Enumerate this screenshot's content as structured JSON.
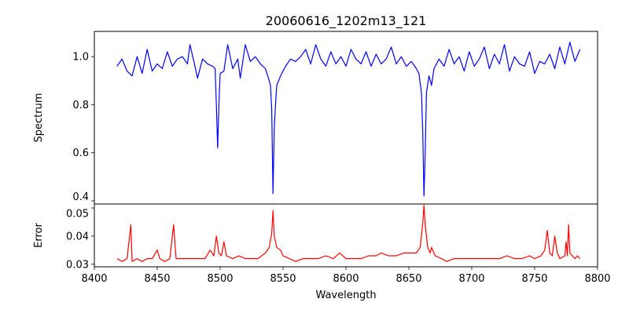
{
  "chart_data": {
    "type": "line",
    "title": "20060616_1202m13_121",
    "xlabel": "Wavelength",
    "xlim": [
      8400,
      8800
    ],
    "xticks": [
      "8400",
      "8450",
      "8500",
      "8550",
      "8600",
      "8650",
      "8700",
      "8750",
      "8800"
    ],
    "grid": false,
    "panels": [
      {
        "name": "spectrum",
        "ylabel": "Spectrum",
        "ylim": [
          0.387,
          1.105
        ],
        "yticks": [
          "0.4",
          "0.6",
          "0.8",
          "1.0"
        ],
        "color": "#0000ff",
        "points": [
          [
            8418,
            0.96
          ],
          [
            8422,
            0.99
          ],
          [
            8426,
            0.94
          ],
          [
            8430,
            0.92
          ],
          [
            8434,
            1.0
          ],
          [
            8438,
            0.93
          ],
          [
            8442,
            1.03
          ],
          [
            8446,
            0.94
          ],
          [
            8450,
            0.97
          ],
          [
            8454,
            0.95
          ],
          [
            8458,
            1.02
          ],
          [
            8462,
            0.96
          ],
          [
            8466,
            0.99
          ],
          [
            8470,
            1.0
          ],
          [
            8474,
            0.97
          ],
          [
            8476,
            1.05
          ],
          [
            8480,
            0.96
          ],
          [
            8482,
            0.91
          ],
          [
            8486,
            0.99
          ],
          [
            8490,
            0.97
          ],
          [
            8494,
            0.96
          ],
          [
            8496,
            0.95
          ],
          [
            8497,
            0.8
          ],
          [
            8498,
            0.62
          ],
          [
            8499,
            0.8
          ],
          [
            8500,
            0.93
          ],
          [
            8503,
            0.94
          ],
          [
            8506,
            1.05
          ],
          [
            8510,
            0.95
          ],
          [
            8514,
            0.99
          ],
          [
            8516,
            0.91
          ],
          [
            8520,
            1.05
          ],
          [
            8524,
            0.98
          ],
          [
            8528,
            1.0
          ],
          [
            8532,
            0.97
          ],
          [
            8536,
            0.95
          ],
          [
            8539,
            0.9
          ],
          [
            8540,
            0.88
          ],
          [
            8541,
            0.78
          ],
          [
            8542,
            0.43
          ],
          [
            8543,
            0.7
          ],
          [
            8544,
            0.8
          ],
          [
            8545,
            0.88
          ],
          [
            8548,
            0.92
          ],
          [
            8552,
            0.96
          ],
          [
            8556,
            0.99
          ],
          [
            8560,
            0.98
          ],
          [
            8564,
            1.0
          ],
          [
            8568,
            1.03
          ],
          [
            8572,
            0.97
          ],
          [
            8576,
            1.05
          ],
          [
            8580,
            0.99
          ],
          [
            8584,
            0.96
          ],
          [
            8588,
            1.02
          ],
          [
            8592,
            0.97
          ],
          [
            8596,
            1.0
          ],
          [
            8600,
            0.96
          ],
          [
            8604,
            1.03
          ],
          [
            8608,
            0.99
          ],
          [
            8612,
            0.97
          ],
          [
            8616,
            1.02
          ],
          [
            8620,
            0.96
          ],
          [
            8624,
            1.01
          ],
          [
            8628,
            0.97
          ],
          [
            8632,
            0.99
          ],
          [
            8636,
            1.04
          ],
          [
            8640,
            0.97
          ],
          [
            8644,
            1.0
          ],
          [
            8648,
            0.96
          ],
          [
            8652,
            0.98
          ],
          [
            8656,
            0.95
          ],
          [
            8658,
            0.93
          ],
          [
            8660,
            0.85
          ],
          [
            8661,
            0.7
          ],
          [
            8662,
            0.42
          ],
          [
            8663,
            0.6
          ],
          [
            8664,
            0.85
          ],
          [
            8666,
            0.92
          ],
          [
            8668,
            0.88
          ],
          [
            8670,
            0.95
          ],
          [
            8674,
            0.99
          ],
          [
            8678,
            0.96
          ],
          [
            8682,
            1.03
          ],
          [
            8686,
            0.97
          ],
          [
            8690,
            1.0
          ],
          [
            8694,
            0.94
          ],
          [
            8698,
            1.02
          ],
          [
            8702,
            0.96
          ],
          [
            8706,
            0.99
          ],
          [
            8710,
            1.04
          ],
          [
            8714,
            0.95
          ],
          [
            8718,
            1.01
          ],
          [
            8722,
            0.97
          ],
          [
            8726,
            1.05
          ],
          [
            8730,
            0.94
          ],
          [
            8734,
            1.0
          ],
          [
            8738,
            0.97
          ],
          [
            8742,
            0.96
          ],
          [
            8746,
            1.02
          ],
          [
            8750,
            0.93
          ],
          [
            8754,
            0.98
          ],
          [
            8758,
            0.97
          ],
          [
            8762,
            1.01
          ],
          [
            8766,
            0.95
          ],
          [
            8770,
            1.04
          ],
          [
            8774,
            0.97
          ],
          [
            8778,
            1.06
          ],
          [
            8782,
            0.98
          ],
          [
            8786,
            1.03
          ]
        ]
      },
      {
        "name": "error",
        "ylabel": "Error",
        "ylim": [
          0.0291,
          0.0514
        ],
        "yticks": [
          "0.03",
          "0.04",
          "0.05"
        ],
        "color": "#ff0000",
        "points": [
          [
            8418,
            0.032
          ],
          [
            8422,
            0.031
          ],
          [
            8426,
            0.032
          ],
          [
            8428,
            0.04
          ],
          [
            8429,
            0.044
          ],
          [
            8430,
            0.031
          ],
          [
            8434,
            0.032
          ],
          [
            8438,
            0.031
          ],
          [
            8442,
            0.032
          ],
          [
            8446,
            0.032
          ],
          [
            8450,
            0.035
          ],
          [
            8452,
            0.032
          ],
          [
            8456,
            0.031
          ],
          [
            8460,
            0.032
          ],
          [
            8463,
            0.044
          ],
          [
            8465,
            0.032
          ],
          [
            8470,
            0.032
          ],
          [
            8476,
            0.032
          ],
          [
            8482,
            0.032
          ],
          [
            8488,
            0.032
          ],
          [
            8492,
            0.035
          ],
          [
            8495,
            0.033
          ],
          [
            8497,
            0.04
          ],
          [
            8499,
            0.034
          ],
          [
            8501,
            0.033
          ],
          [
            8503,
            0.038
          ],
          [
            8505,
            0.033
          ],
          [
            8510,
            0.032
          ],
          [
            8515,
            0.033
          ],
          [
            8520,
            0.032
          ],
          [
            8525,
            0.032
          ],
          [
            8530,
            0.032
          ],
          [
            8536,
            0.034
          ],
          [
            8539,
            0.036
          ],
          [
            8541,
            0.041
          ],
          [
            8542,
            0.049
          ],
          [
            8543,
            0.04
          ],
          [
            8545,
            0.036
          ],
          [
            8548,
            0.035
          ],
          [
            8550,
            0.033
          ],
          [
            8555,
            0.032
          ],
          [
            8560,
            0.031
          ],
          [
            8566,
            0.032
          ],
          [
            8572,
            0.032
          ],
          [
            8578,
            0.032
          ],
          [
            8584,
            0.033
          ],
          [
            8590,
            0.032
          ],
          [
            8595,
            0.034
          ],
          [
            8600,
            0.032
          ],
          [
            8606,
            0.032
          ],
          [
            8612,
            0.032
          ],
          [
            8618,
            0.033
          ],
          [
            8624,
            0.033
          ],
          [
            8628,
            0.034
          ],
          [
            8634,
            0.033
          ],
          [
            8640,
            0.033
          ],
          [
            8646,
            0.034
          ],
          [
            8652,
            0.034
          ],
          [
            8656,
            0.034
          ],
          [
            8659,
            0.036
          ],
          [
            8661,
            0.044
          ],
          [
            8662,
            0.051
          ],
          [
            8663,
            0.044
          ],
          [
            8665,
            0.036
          ],
          [
            8667,
            0.034
          ],
          [
            8668,
            0.036
          ],
          [
            8671,
            0.033
          ],
          [
            8676,
            0.032
          ],
          [
            8680,
            0.031
          ],
          [
            8686,
            0.032
          ],
          [
            8692,
            0.032
          ],
          [
            8698,
            0.032
          ],
          [
            8704,
            0.032
          ],
          [
            8710,
            0.032
          ],
          [
            8716,
            0.032
          ],
          [
            8722,
            0.032
          ],
          [
            8728,
            0.033
          ],
          [
            8734,
            0.032
          ],
          [
            8740,
            0.032
          ],
          [
            8746,
            0.033
          ],
          [
            8750,
            0.032
          ],
          [
            8755,
            0.033
          ],
          [
            8758,
            0.035
          ],
          [
            8760,
            0.042
          ],
          [
            8762,
            0.034
          ],
          [
            8764,
            0.033
          ],
          [
            8766,
            0.04
          ],
          [
            8768,
            0.034
          ],
          [
            8770,
            0.032
          ],
          [
            8774,
            0.033
          ],
          [
            8775,
            0.038
          ],
          [
            8776,
            0.033
          ],
          [
            8777,
            0.044
          ],
          [
            8778,
            0.034
          ],
          [
            8782,
            0.032
          ],
          [
            8784,
            0.033
          ],
          [
            8786,
            0.032
          ]
        ]
      }
    ]
  }
}
